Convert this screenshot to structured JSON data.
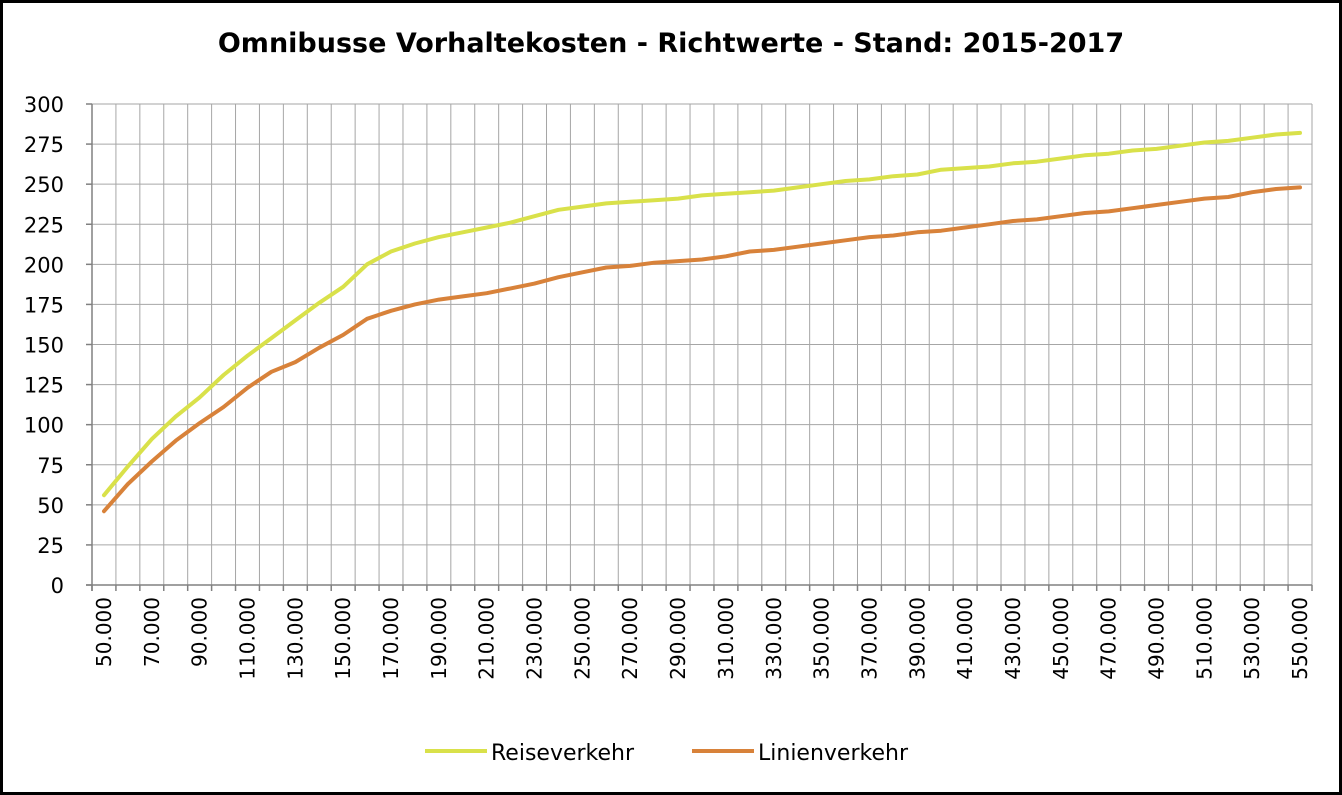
{
  "chart_data": {
    "type": "line",
    "title": "Omnibusse Vorhaltekosten - Richtwerte - Stand: 2015-2017",
    "xlabel": "",
    "ylabel": "",
    "ylim": [
      0,
      300
    ],
    "yticks": [
      "0",
      "25",
      "50",
      "75",
      "100",
      "125",
      "150",
      "175",
      "200",
      "225",
      "250",
      "275",
      "300"
    ],
    "grid": true,
    "legend_position": "bottom",
    "x": [
      50000,
      60000,
      70000,
      80000,
      90000,
      100000,
      110000,
      120000,
      130000,
      140000,
      150000,
      160000,
      170000,
      180000,
      190000,
      200000,
      210000,
      220000,
      230000,
      240000,
      250000,
      260000,
      270000,
      280000,
      290000,
      300000,
      310000,
      320000,
      330000,
      340000,
      350000,
      360000,
      370000,
      380000,
      390000,
      400000,
      410000,
      420000,
      430000,
      440000,
      450000,
      460000,
      470000,
      480000,
      490000,
      500000,
      510000,
      520000,
      530000,
      540000,
      550000
    ],
    "xtick_labels": [
      "50.000",
      "70.000",
      "90.000",
      "110.000",
      "130.000",
      "150.000",
      "170.000",
      "190.000",
      "210.000",
      "230.000",
      "250.000",
      "270.000",
      "290.000",
      "310.000",
      "330.000",
      "350.000",
      "370.000",
      "390.000",
      "410.000",
      "430.000",
      "450.000",
      "470.000",
      "490.000",
      "510.000",
      "530.000",
      "550.000"
    ],
    "series": [
      {
        "name": "Reiseverkehr",
        "color": "#d9e14a",
        "values": [
          56,
          74,
          91,
          105,
          117,
          131,
          143,
          154,
          165,
          176,
          186,
          200,
          208,
          213,
          217,
          220,
          223,
          226,
          230,
          234,
          236,
          238,
          239,
          240,
          241,
          243,
          244,
          245,
          246,
          248,
          250,
          252,
          253,
          255,
          256,
          259,
          260,
          261,
          263,
          264,
          266,
          268,
          269,
          271,
          272,
          274,
          276,
          277,
          279,
          281,
          282
        ]
      },
      {
        "name": "Linienverkehr",
        "color": "#d8823a",
        "values": [
          46,
          63,
          77,
          90,
          101,
          111,
          123,
          133,
          139,
          148,
          156,
          166,
          171,
          175,
          178,
          180,
          182,
          185,
          188,
          192,
          195,
          198,
          199,
          201,
          202,
          203,
          205,
          208,
          209,
          211,
          213,
          215,
          217,
          218,
          220,
          221,
          223,
          225,
          227,
          228,
          230,
          232,
          233,
          235,
          237,
          239,
          241,
          242,
          245,
          247,
          248
        ]
      }
    ]
  }
}
